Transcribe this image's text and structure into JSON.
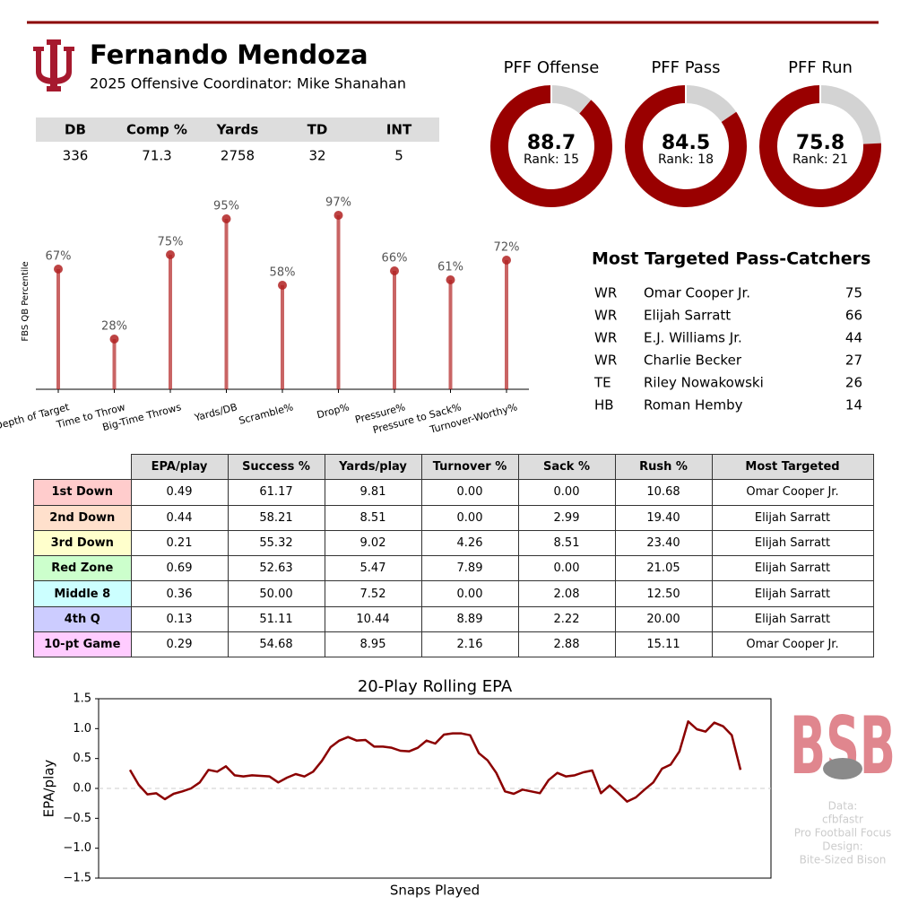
{
  "header": {
    "title": "Fernando Mendoza",
    "subtitle": "2025 Offensive Coordinator: Mike Shanahan"
  },
  "stat_table": {
    "columns": [
      "DB",
      "Comp %",
      "Yards",
      "TD",
      "INT"
    ],
    "rows": [
      [
        336,
        71.3,
        2758,
        32,
        5
      ]
    ]
  },
  "chart_data": [
    {
      "type": "donut",
      "title": "PFF Offense",
      "value": 88.7,
      "rank_label": "Rank: 15",
      "ylim": [
        0,
        100
      ],
      "color": "#990000",
      "rest_color": "#d3d3d3"
    },
    {
      "type": "donut",
      "title": "PFF Pass",
      "value": 84.5,
      "rank_label": "Rank: 18",
      "ylim": [
        0,
        100
      ],
      "color": "#990000",
      "rest_color": "#d3d3d3"
    },
    {
      "type": "donut",
      "title": "PFF Run",
      "value": 75.8,
      "rank_label": "Rank: 21",
      "ylim": [
        0,
        100
      ],
      "color": "#990000",
      "rest_color": "#d3d3d3"
    },
    {
      "type": "lollipop",
      "ylabel": "FBS QB Percentile",
      "categories": [
        "Depth of Target",
        "Time to Throw",
        "Big-Time Throws",
        "Yards/DB",
        "Scramble%",
        "Drop%",
        "Pressure%",
        "Pressure to Sack%",
        "Turnover-Worthy%"
      ],
      "values": [
        67,
        28,
        75,
        95,
        58,
        97,
        66,
        61,
        72
      ],
      "value_labels": [
        "67%",
        "28%",
        "75%",
        "95%",
        "58%",
        "97%",
        "66%",
        "61%",
        "72%"
      ],
      "ylim": [
        0,
        100
      ],
      "color": "#b22222"
    },
    {
      "type": "line",
      "title": "20-Play Rolling EPA",
      "xlabel": "Snaps Played",
      "ylabel": "EPA/play",
      "color": "#8b0000",
      "ylim": [
        -1.5,
        1.5
      ],
      "yticks": [
        {
          "value": -1.5,
          "label": "−1.5"
        },
        {
          "value": -1,
          "label": "−1.0"
        },
        {
          "value": -0.5,
          "label": "−0.5"
        },
        {
          "value": 0,
          "label": "0.0"
        },
        0.5,
        {
          "value": 1,
          "label": "1.0"
        },
        1.5
      ],
      "reference_line": 0,
      "values": [
        0.31,
        0.06,
        -0.1,
        -0.08,
        -0.18,
        -0.09,
        -0.05,
        0.0,
        0.1,
        0.31,
        0.28,
        0.37,
        0.22,
        0.2,
        0.22,
        0.21,
        0.2,
        0.1,
        0.18,
        0.24,
        0.2,
        0.28,
        0.46,
        0.69,
        0.8,
        0.86,
        0.8,
        0.81,
        0.7,
        0.7,
        0.68,
        0.63,
        0.62,
        0.68,
        0.8,
        0.75,
        0.9,
        0.92,
        0.92,
        0.89,
        0.59,
        0.47,
        0.26,
        -0.05,
        -0.09,
        -0.02,
        -0.05,
        -0.08,
        0.14,
        0.26,
        0.2,
        0.22,
        0.27,
        0.3,
        -0.08,
        0.05,
        -0.08,
        -0.22,
        -0.15,
        -0.02,
        0.1,
        0.33,
        0.4,
        0.62,
        1.12,
        0.99,
        0.95,
        1.1,
        1.04,
        0.89,
        0.31
      ]
    }
  ],
  "targets": {
    "title": "Most Targeted Pass-Catchers",
    "rows": [
      [
        "WR",
        "Omar Cooper Jr.",
        75
      ],
      [
        "WR",
        "Elijah Sarratt",
        66
      ],
      [
        "WR",
        "E.J. Williams Jr.",
        44
      ],
      [
        "WR",
        "Charlie Becker",
        27
      ],
      [
        "TE",
        "Riley Nowakowski",
        26
      ],
      [
        "HB",
        "Roman Hemby",
        14
      ]
    ]
  },
  "situational": {
    "columns": [
      "EPA/play",
      "Success %",
      "Yards/play",
      "Turnover %",
      "Sack %",
      "Rush %",
      "Most Targeted"
    ],
    "rows": [
      {
        "label": "1st Down",
        "color": "#ffcccc",
        "cells": [
          "0.49",
          "61.17",
          "9.81",
          "0.00",
          "0.00",
          "10.68",
          "Omar Cooper Jr."
        ]
      },
      {
        "label": "2nd Down",
        "color": "#ffe0cc",
        "cells": [
          "0.44",
          "58.21",
          "8.51",
          "0.00",
          "2.99",
          "19.40",
          "Elijah Sarratt"
        ]
      },
      {
        "label": "3rd Down",
        "color": "#ffffcc",
        "cells": [
          "0.21",
          "55.32",
          "9.02",
          "4.26",
          "8.51",
          "23.40",
          "Elijah Sarratt"
        ]
      },
      {
        "label": "Red Zone",
        "color": "#ccffcc",
        "cells": [
          "0.69",
          "52.63",
          "5.47",
          "7.89",
          "0.00",
          "21.05",
          "Elijah Sarratt"
        ]
      },
      {
        "label": "Middle 8",
        "color": "#ccffff",
        "cells": [
          "0.36",
          "50.00",
          "7.52",
          "0.00",
          "2.08",
          "12.50",
          "Elijah Sarratt"
        ]
      },
      {
        "label": "4th Q",
        "color": "#ccccff",
        "cells": [
          "0.13",
          "51.11",
          "10.44",
          "8.89",
          "2.22",
          "20.00",
          "Elijah Sarratt"
        ]
      },
      {
        "label": "10-pt Game",
        "color": "#ffccff",
        "cells": [
          "0.29",
          "54.68",
          "8.95",
          "2.16",
          "2.88",
          "15.11",
          "Omar Cooper Jr."
        ]
      }
    ]
  },
  "logo": "BSB",
  "credits": [
    "Data:",
    "cfbfastr",
    "Pro Football Focus",
    "Design:",
    "Bite-Sized Bison"
  ]
}
